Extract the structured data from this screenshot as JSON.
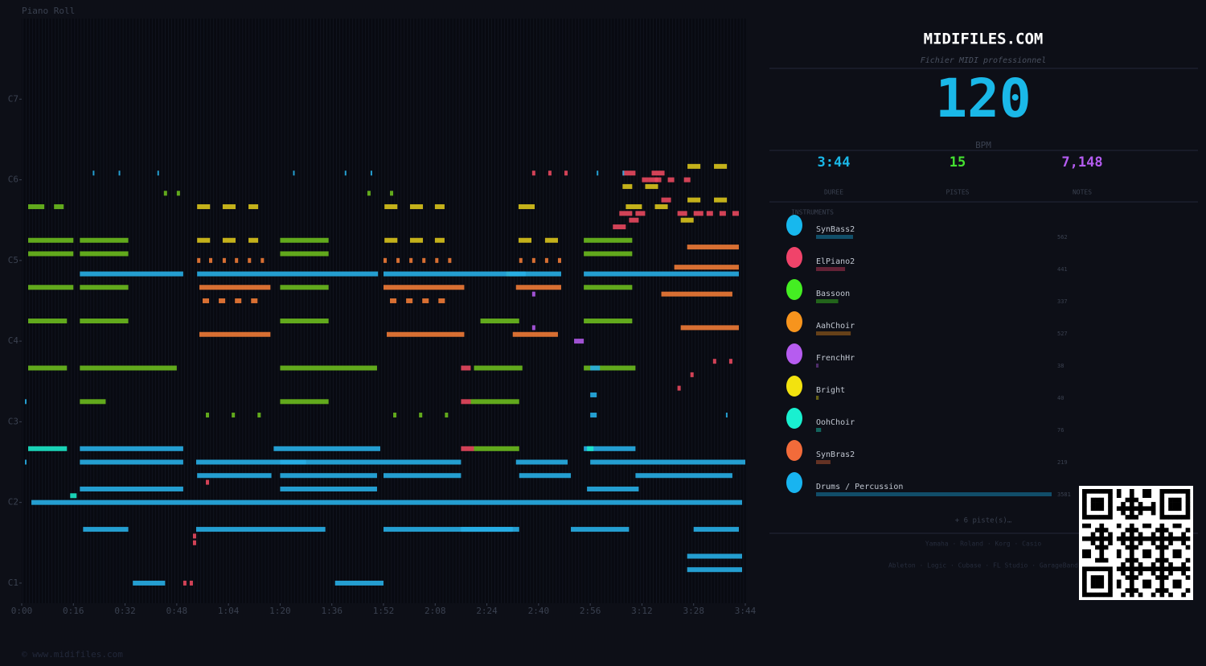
{
  "chart_data": {
    "type": "pianoroll",
    "title": "Piano Roll",
    "xlim": [
      0,
      224
    ],
    "xticks": [
      {
        "value": 0,
        "label": "0:00"
      },
      {
        "value": 16,
        "label": "0:16"
      },
      {
        "value": 32,
        "label": "0:32"
      },
      {
        "value": 48,
        "label": "0:48"
      },
      {
        "value": 64,
        "label": "1:04"
      },
      {
        "value": 80,
        "label": "1:20"
      },
      {
        "value": 96,
        "label": "1:36"
      },
      {
        "value": 112,
        "label": "1:52"
      },
      {
        "value": 128,
        "label": "2:08"
      },
      {
        "value": 144,
        "label": "2:24"
      },
      {
        "value": 160,
        "label": "2:40"
      },
      {
        "value": 176,
        "label": "2:56"
      },
      {
        "value": 192,
        "label": "3:12"
      },
      {
        "value": 208,
        "label": "3:28"
      },
      {
        "value": 224,
        "label": "3:44"
      }
    ],
    "ylim": [
      21,
      108
    ],
    "yticks": [
      {
        "value": 24,
        "label": "C1"
      },
      {
        "value": 36,
        "label": "C2"
      },
      {
        "value": 48,
        "label": "C3"
      },
      {
        "value": 60,
        "label": "C4"
      },
      {
        "value": 72,
        "label": "C5"
      },
      {
        "value": 84,
        "label": "C6"
      },
      {
        "value": 96,
        "label": "C7"
      }
    ],
    "series": [
      {
        "color": "#6cba1e",
        "x": [
          2,
          10,
          2,
          2,
          2,
          2,
          2,
          18,
          18,
          18,
          18,
          18,
          18,
          80,
          80,
          80,
          80,
          80,
          80,
          140,
          139,
          140,
          150,
          142,
          174,
          174,
          174,
          174,
          174,
          57,
          65,
          73,
          115,
          123,
          131,
          44,
          48,
          107,
          114
        ],
        "durations": [
          5,
          3,
          14,
          14,
          14,
          12,
          12,
          15,
          15,
          15,
          15,
          30,
          8,
          15,
          15,
          15,
          15,
          30,
          15,
          15,
          15,
          14,
          4,
          12,
          15,
          15,
          15,
          15,
          16,
          1,
          1,
          1,
          1,
          1,
          1,
          1,
          1,
          1,
          1
        ],
        "values": [
          80,
          80,
          75,
          73,
          68,
          63,
          56,
          75,
          73,
          68,
          63,
          56,
          51,
          75,
          73,
          68,
          63,
          56,
          51,
          56,
          51,
          44,
          70,
          63,
          75,
          73,
          68,
          63,
          56,
          49,
          49,
          49,
          49,
          49,
          49,
          82,
          82,
          82,
          82
        ]
      },
      {
        "color": "#d9c31c",
        "x": [
          54.3,
          62.2,
          70.2,
          54.3,
          62.2,
          70.2,
          112.3,
          120.2,
          127.9,
          112.3,
          120.2,
          127.9,
          153.8,
          162,
          153.8,
          206.1,
          214.3,
          206.1,
          214.3,
          186,
          193,
          204,
          187,
          196
        ],
        "durations": [
          4,
          4,
          3,
          4,
          4,
          3,
          4,
          4,
          3,
          4,
          4,
          3,
          5,
          4,
          4,
          4,
          4,
          4,
          4,
          3,
          4,
          4,
          5,
          4
        ],
        "values": [
          80,
          80,
          80,
          75,
          75,
          75,
          80,
          80,
          80,
          75,
          75,
          75,
          80,
          75,
          75,
          86,
          86,
          81,
          81,
          83,
          83,
          78,
          80,
          80
        ]
      },
      {
        "color": "#f07a36",
        "x": [
          55,
          112,
          153,
          54.3,
          58,
          62.2,
          66,
          70,
          74,
          112,
          116,
          120,
          124,
          128,
          132,
          154,
          158,
          162,
          166,
          56,
          61,
          66,
          71,
          114,
          119,
          124,
          129,
          55,
          113,
          152,
          206,
          202,
          198,
          204
        ],
        "durations": [
          22,
          25,
          14,
          1,
          1,
          1,
          1,
          1,
          1,
          1,
          1,
          1,
          1,
          1,
          1,
          1,
          1,
          1,
          1,
          2,
          2,
          2,
          2,
          2,
          2,
          2,
          2,
          22,
          24,
          14,
          16,
          20,
          22,
          18
        ],
        "values": [
          68,
          68,
          68,
          72,
          72,
          72,
          72,
          72,
          72,
          72,
          72,
          72,
          72,
          72,
          72,
          72,
          72,
          72,
          72,
          66,
          66,
          66,
          66,
          66,
          66,
          66,
          66,
          61,
          61,
          61,
          74,
          71,
          67,
          62
        ]
      },
      {
        "color": "#e8485e",
        "x": [
          136,
          136,
          136,
          185,
          190,
          194,
          198,
          203,
          208,
          212,
          216,
          220,
          183,
          188,
          192,
          196,
          200,
          205,
          214,
          219,
          207,
          203,
          158,
          163,
          168,
          186,
          195,
          57,
          53,
          53,
          50,
          52
        ],
        "durations": [
          3,
          3,
          4,
          4,
          3,
          3,
          3,
          3,
          3,
          2,
          2,
          2,
          4,
          3,
          2,
          2,
          2,
          2,
          1,
          1,
          1,
          1,
          1,
          1,
          1,
          4,
          4,
          1,
          1,
          1,
          1,
          1
        ],
        "values": [
          56,
          51,
          44,
          79,
          79,
          84,
          81,
          79,
          79,
          79,
          79,
          79,
          77,
          78,
          84,
          84,
          84,
          84,
          57,
          57,
          55,
          53,
          85,
          85,
          85,
          85,
          85,
          39,
          31,
          30,
          24,
          24
        ]
      },
      {
        "color": "#28aee6",
        "x": [
          18,
          54.3,
          112,
          151,
          174,
          18,
          78,
          174,
          1,
          18,
          54,
          80,
          153,
          176,
          54.3,
          80,
          112,
          154,
          190,
          18,
          80,
          175,
          3,
          136,
          170,
          19,
          54,
          112,
          208,
          34.4,
          97,
          206,
          206,
          22,
          30,
          42,
          84,
          100,
          108,
          178,
          186,
          1,
          176,
          176,
          176,
          218
        ],
        "durations": [
          32,
          56,
          44,
          16,
          48,
          32,
          33,
          16,
          0.5,
          32,
          34,
          56,
          16,
          48,
          23,
          30,
          24,
          16,
          30,
          32,
          30,
          16,
          220,
          18,
          18,
          14,
          40,
          40,
          14,
          10,
          15,
          17,
          17,
          0.5,
          0.5,
          0.5,
          0.5,
          0.5,
          0.5,
          0.5,
          0.5,
          0.5,
          3,
          2,
          2,
          0.5
        ],
        "values": [
          70,
          70,
          70,
          70,
          70,
          44,
          44,
          44,
          42,
          42,
          42,
          42,
          42,
          42,
          40,
          40,
          40,
          40,
          40,
          38,
          38,
          38,
          36,
          32,
          32,
          32,
          32,
          32,
          32,
          24,
          24,
          28,
          26,
          85,
          85,
          85,
          85,
          85,
          85,
          85,
          85,
          51,
          56,
          52,
          49,
          49
        ]
      },
      {
        "color": "#b05ae8",
        "x": [
          158,
          171,
          158
        ],
        "durations": [
          1,
          3,
          1
        ],
        "values": [
          62,
          60,
          67
        ]
      },
      {
        "color": "#1ce8c8",
        "x": [
          15,
          175,
          2
        ],
        "durations": [
          2,
          2,
          12
        ],
        "values": [
          37,
          44,
          44
        ]
      }
    ]
  },
  "panel": {
    "brand": "MIDIFILES.COM",
    "subtitle": "Fichier MIDI professionnel",
    "tempo": 120,
    "tempo_unit": "BPM",
    "stats": [
      {
        "value": "3:44",
        "label": "DUREE",
        "color": "#1ab8e8"
      },
      {
        "value": 15,
        "label": "PISTES",
        "color": "#44e030"
      },
      {
        "value": "7,148",
        "label": "NOTES",
        "color": "#b45cf0"
      }
    ],
    "instruments_heading": "INSTRUMENTS",
    "instruments": [
      {
        "name": "SynBass2",
        "color": "#17b8ee",
        "count": 562
      },
      {
        "name": "ElPiano2",
        "color": "#f0436a",
        "count": 441
      },
      {
        "name": "Bassoon",
        "color": "#44ee22",
        "count": 337
      },
      {
        "name": "AahChoir",
        "color": "#f7941d",
        "count": 527
      },
      {
        "name": "FrenchHr",
        "color": "#b65cf0",
        "count": 38
      },
      {
        "name": "Bright",
        "color": "#f2e20f",
        "count": 40
      },
      {
        "name": "OohChoir",
        "color": "#19f0d0",
        "count": 76
      },
      {
        "name": "SynBras2",
        "color": "#f26b3a",
        "count": 219
      },
      {
        "name": "Drums / Percussion",
        "color": "#18b4f0",
        "count": 3581
      }
    ],
    "more": "+ 6 piste(s)…",
    "brands": "Yamaha · Roland · Korg · Casio",
    "software": "Ableton · Logic · Cubase · FL Studio · GarageBand"
  },
  "footer": "© www.midifiles.com"
}
